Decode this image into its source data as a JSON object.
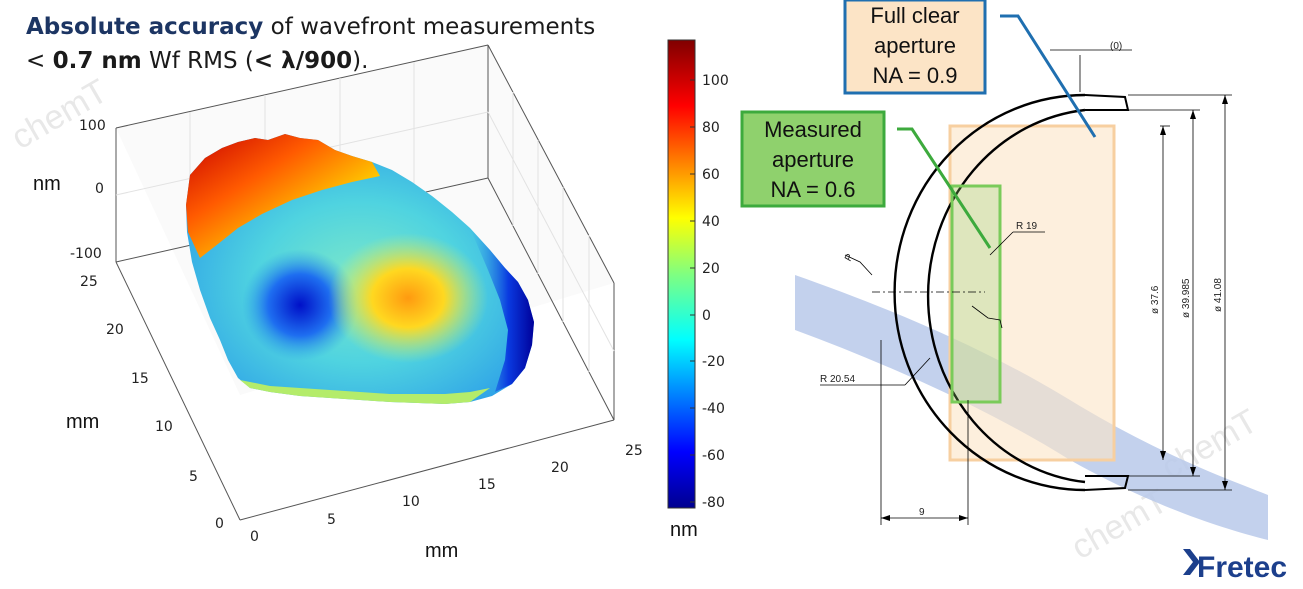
{
  "title": {
    "line1_accent": "Absolute accuracy",
    "line1_rest": " of wavefront measurements",
    "line2_lt": "< ",
    "line2_value": "0.7 nm",
    "line2_mid": " Wf RMS (",
    "line2_ratio": "< λ/900",
    "line2_end": ")."
  },
  "plot3d": {
    "z_axis_label": "nm",
    "z_ticks": [
      "100",
      "0",
      "-100"
    ],
    "y_axis_label": "mm",
    "y_ticks": [
      "25",
      "20",
      "15",
      "10",
      "5",
      "0"
    ],
    "x_axis_label": "mm",
    "x_ticks": [
      "0",
      "5",
      "10",
      "15",
      "20",
      "25"
    ]
  },
  "colorbar": {
    "ticks": [
      "100",
      "80",
      "60",
      "40",
      "20",
      "0",
      "-20",
      "-40",
      "-60",
      "-80"
    ],
    "unit": "nm",
    "colormap": "jet"
  },
  "drawing": {
    "full_aperture_label": [
      "Full clear",
      "aperture",
      "NA = 0.9"
    ],
    "measured_aperture_label": [
      "Measured",
      "aperture",
      "NA = 0.6"
    ],
    "dim_zero": "(0)",
    "dim_r19": "R 19",
    "dim_r2054": "R 20.54",
    "dim_9": "9",
    "dim_d376": "ø 37.6",
    "dim_d39985": "ø 39.985",
    "dim_d4108": "ø 41.08",
    "mark_p": "P"
  },
  "logo": {
    "text": "Fretec"
  },
  "watermark": "chemT",
  "colors": {
    "title_accent": "#1c3563",
    "full_aperture_border": "#1f6fb0",
    "full_aperture_fill": "#fce4c6",
    "measured_border": "#3daa3d",
    "measured_fill": "#8fd16d",
    "beam": "#b8c9ea",
    "logo": "#1c3f8c"
  }
}
